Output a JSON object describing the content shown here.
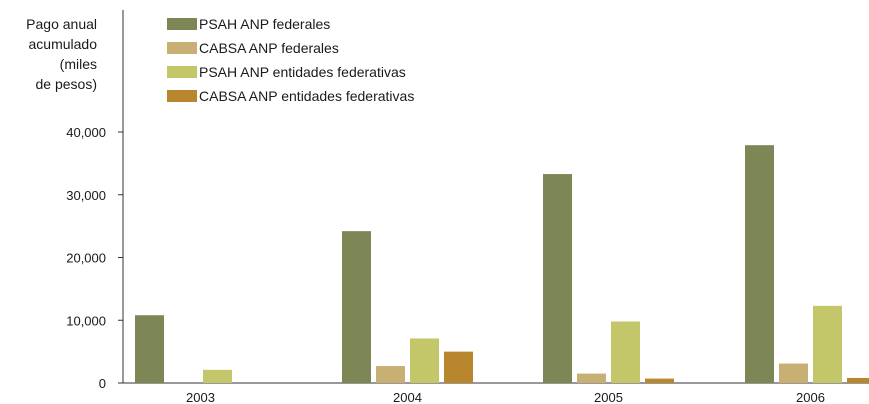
{
  "chart_data": {
    "type": "bar",
    "ylabel_lines": [
      "Pago anual",
      "acumulado",
      "(miles",
      "de pesos)"
    ],
    "categories": [
      "2003",
      "2004",
      "2005",
      "2006"
    ],
    "ylim": [
      0,
      42000
    ],
    "yticks": [
      0,
      10000,
      20000,
      30000,
      40000
    ],
    "ytick_labels": [
      "0",
      "10,000",
      "20,000",
      "30,000",
      "40,000"
    ],
    "grid": false,
    "legend_position": "top-left",
    "series": [
      {
        "name": "PSAH ANP federales",
        "color": "#7d8755",
        "values": [
          10800,
          24200,
          33300,
          37900
        ]
      },
      {
        "name": "CABSA ANP federales",
        "color": "#c8b074",
        "values": [
          0,
          2700,
          1500,
          3100
        ]
      },
      {
        "name": "PSAH ANP entidades federativas",
        "color": "#c3c76a",
        "values": [
          2100,
          7100,
          9800,
          12300
        ]
      },
      {
        "name": "CABSA ANP entidades federativas",
        "color": "#b8872d",
        "values": [
          0,
          5000,
          700,
          800
        ]
      }
    ]
  }
}
